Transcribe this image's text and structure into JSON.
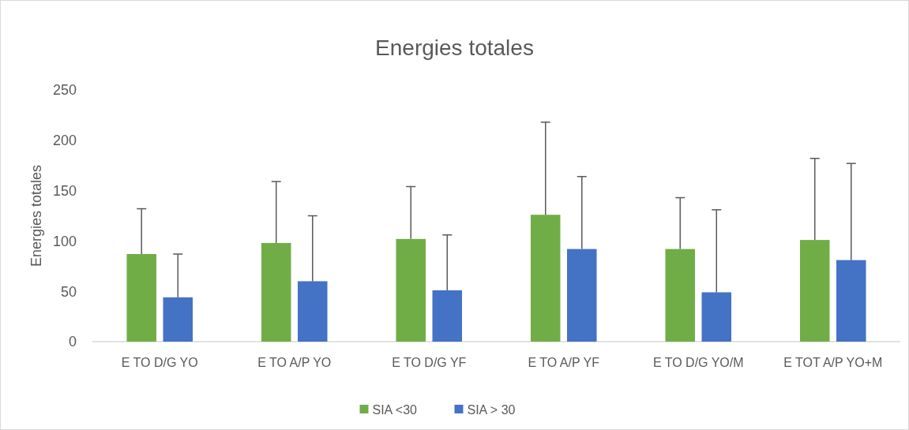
{
  "chart_data": {
    "type": "bar",
    "title": "Energies totales",
    "ylabel": "Energies totales",
    "categories": [
      "E TO D/G YO",
      "E TO A/P YO",
      "E TO D/G YF",
      "E TO A/P YF",
      "E TO D/G YO/M",
      "E TOT A/P YO+M"
    ],
    "series": [
      {
        "name": "SIA <30",
        "color": "#70ad47",
        "values": [
          87,
          98,
          102,
          126,
          92,
          101
        ],
        "errors": [
          [
            87,
            132
          ],
          [
            98,
            159
          ],
          [
            102,
            154
          ],
          [
            126,
            218
          ],
          [
            92,
            143
          ],
          [
            101,
            182
          ]
        ]
      },
      {
        "name": "SIA > 30",
        "color": "#4472c4",
        "values": [
          44,
          60,
          51,
          92,
          49,
          81
        ],
        "errors": [
          [
            44,
            87
          ],
          [
            60,
            125
          ],
          [
            51,
            106
          ],
          [
            92,
            164
          ],
          [
            49,
            131
          ],
          [
            81,
            177
          ]
        ]
      }
    ],
    "ylim": [
      0,
      250
    ],
    "yticks": [
      0,
      50,
      100,
      150,
      200,
      250
    ],
    "grid": false,
    "legend": "bottom"
  }
}
